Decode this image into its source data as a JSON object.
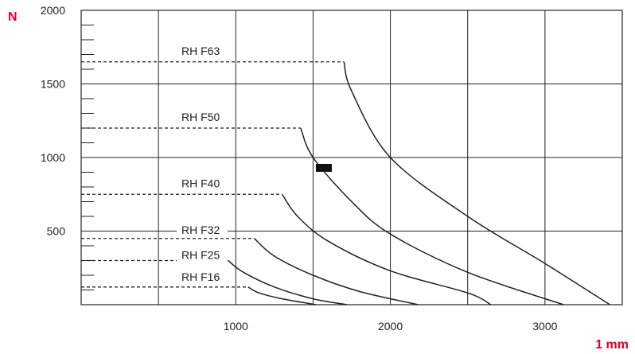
{
  "chart_data": {
    "type": "line",
    "y_unit": "N",
    "x_unit": "1 mm",
    "xlim": [
      0,
      3500
    ],
    "ylim": [
      0,
      2000
    ],
    "x_ticks": [
      1000,
      2000,
      3000
    ],
    "x_tick_labels": [
      "1000",
      "2000",
      "3000"
    ],
    "x_grid": [
      500,
      1000,
      1500,
      2000,
      2500,
      3000,
      3500
    ],
    "y_ticks": [
      500,
      1000,
      1500,
      2000
    ],
    "y_tick_labels": [
      "500",
      "1000",
      "1500",
      "2000"
    ],
    "y_minor_step": 100,
    "grid": true,
    "accent_color": "#e4002b",
    "series": [
      {
        "name": "RH F63",
        "points": [
          [
            0,
            1650
          ],
          [
            1700,
            1650
          ],
          [
            1750,
            1450
          ],
          [
            2000,
            1000
          ],
          [
            2500,
            600
          ],
          [
            3000,
            280
          ],
          [
            3420,
            0
          ]
        ]
      },
      {
        "name": "RH F50",
        "points": [
          [
            0,
            1200
          ],
          [
            1420,
            1200
          ],
          [
            1500,
            1000
          ],
          [
            1750,
            700
          ],
          [
            2000,
            480
          ],
          [
            2500,
            220
          ],
          [
            3120,
            0
          ]
        ]
      },
      {
        "name": "RH F40",
        "points": [
          [
            0,
            750
          ],
          [
            1300,
            750
          ],
          [
            1400,
            600
          ],
          [
            1600,
            430
          ],
          [
            2000,
            230
          ],
          [
            2500,
            80
          ],
          [
            2650,
            0
          ]
        ]
      },
      {
        "name": "RH F32",
        "points": [
          [
            0,
            450
          ],
          [
            1120,
            450
          ],
          [
            1250,
            330
          ],
          [
            1500,
            200
          ],
          [
            1800,
            90
          ],
          [
            2180,
            0
          ]
        ]
      },
      {
        "name": "RH F25",
        "points": [
          [
            0,
            300
          ],
          [
            950,
            300
          ],
          [
            1050,
            220
          ],
          [
            1250,
            120
          ],
          [
            1500,
            40
          ],
          [
            1720,
            0
          ]
        ]
      },
      {
        "name": "RH F16",
        "points": [
          [
            0,
            120
          ],
          [
            1080,
            120
          ],
          [
            1150,
            80
          ],
          [
            1300,
            40
          ],
          [
            1520,
            0
          ]
        ]
      }
    ]
  }
}
